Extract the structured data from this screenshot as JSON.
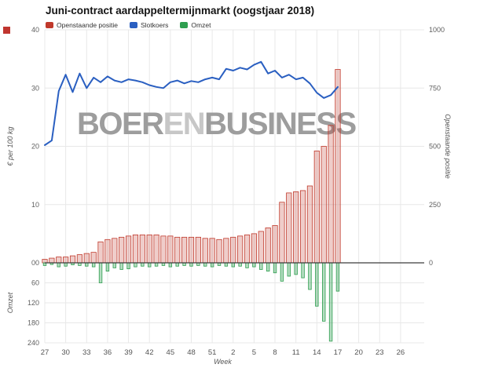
{
  "title": "Juni-contract aardappeltermijnmarkt (oogstjaar 2018)",
  "legend": [
    {
      "label": "Openstaande positie",
      "color": "#c0392b"
    },
    {
      "label": "Slotkoers",
      "color": "#2a5fc1"
    },
    {
      "label": "Omzet",
      "color": "#2e9e4f"
    }
  ],
  "watermark": {
    "part1": "BOER",
    "part2": "EN",
    "part3": "BUSINESS"
  },
  "axes": {
    "price": {
      "title": "€ per 100 kg",
      "ticks": [
        0,
        10,
        20,
        30,
        40
      ]
    },
    "open_interest": {
      "title": "Openstaande positie",
      "ticks": [
        0,
        250,
        500,
        750,
        1000
      ]
    },
    "omzet": {
      "title": "Omzet",
      "ticks": [
        0,
        60,
        120,
        180,
        240
      ]
    },
    "x": {
      "title": "Week",
      "tick_labels": [
        "27",
        "30",
        "33",
        "36",
        "39",
        "42",
        "45",
        "48",
        "51",
        "2",
        "5",
        "8",
        "11",
        "14",
        "17",
        "20",
        "23",
        "26"
      ]
    }
  },
  "chart_data": {
    "type": "combo",
    "title": "Juni-contract aardappeltermijnmarkt (oogstjaar 2018)",
    "xlabel": "Week",
    "grid": true,
    "legend_position": "top",
    "axis_max": {
      "price": 40,
      "open_interest": 1000,
      "omzet": 240
    },
    "x_weeks": [
      27,
      28,
      29,
      30,
      31,
      32,
      33,
      34,
      35,
      36,
      37,
      38,
      39,
      40,
      41,
      42,
      43,
      44,
      45,
      46,
      47,
      48,
      49,
      50,
      51,
      52,
      1,
      2,
      3,
      4,
      5,
      6,
      7,
      8,
      9,
      10,
      11,
      12,
      13,
      14,
      15,
      16,
      17
    ],
    "series": [
      {
        "name": "Openstaande positie",
        "type": "bar",
        "axis": "open_interest",
        "color": "#c0392b",
        "fill": "rgba(192,57,43,0.25)",
        "values": [
          15,
          20,
          25,
          25,
          30,
          35,
          40,
          45,
          90,
          100,
          105,
          110,
          115,
          120,
          120,
          120,
          120,
          115,
          115,
          110,
          110,
          110,
          110,
          105,
          105,
          100,
          105,
          110,
          115,
          120,
          125,
          135,
          150,
          160,
          260,
          300,
          305,
          310,
          330,
          480,
          500,
          590,
          830
        ]
      },
      {
        "name": "Slotkoers",
        "type": "line",
        "axis": "price",
        "color": "#2a5fc1",
        "values": [
          20.2,
          21.0,
          29.5,
          32.3,
          29.3,
          32.5,
          30.0,
          31.8,
          31.0,
          32.0,
          31.3,
          31.0,
          31.5,
          31.3,
          31.0,
          30.5,
          30.2,
          30.0,
          31.0,
          31.3,
          30.8,
          31.2,
          31.0,
          31.5,
          31.8,
          31.5,
          33.3,
          33.0,
          33.5,
          33.2,
          34.0,
          34.5,
          32.5,
          33.0,
          31.8,
          32.3,
          31.5,
          31.8,
          30.8,
          29.2,
          28.3,
          28.8,
          30.2
        ]
      },
      {
        "name": "Omzet",
        "type": "bar",
        "axis": "omzet",
        "direction": "down",
        "color": "#2e9e4f",
        "fill": "rgba(46,158,79,0.35)",
        "values": [
          8,
          5,
          12,
          10,
          6,
          8,
          10,
          12,
          60,
          25,
          15,
          20,
          18,
          12,
          10,
          12,
          10,
          8,
          12,
          10,
          8,
          10,
          8,
          10,
          12,
          8,
          10,
          12,
          10,
          15,
          12,
          20,
          25,
          30,
          55,
          40,
          35,
          45,
          80,
          130,
          175,
          235,
          85
        ]
      }
    ]
  }
}
